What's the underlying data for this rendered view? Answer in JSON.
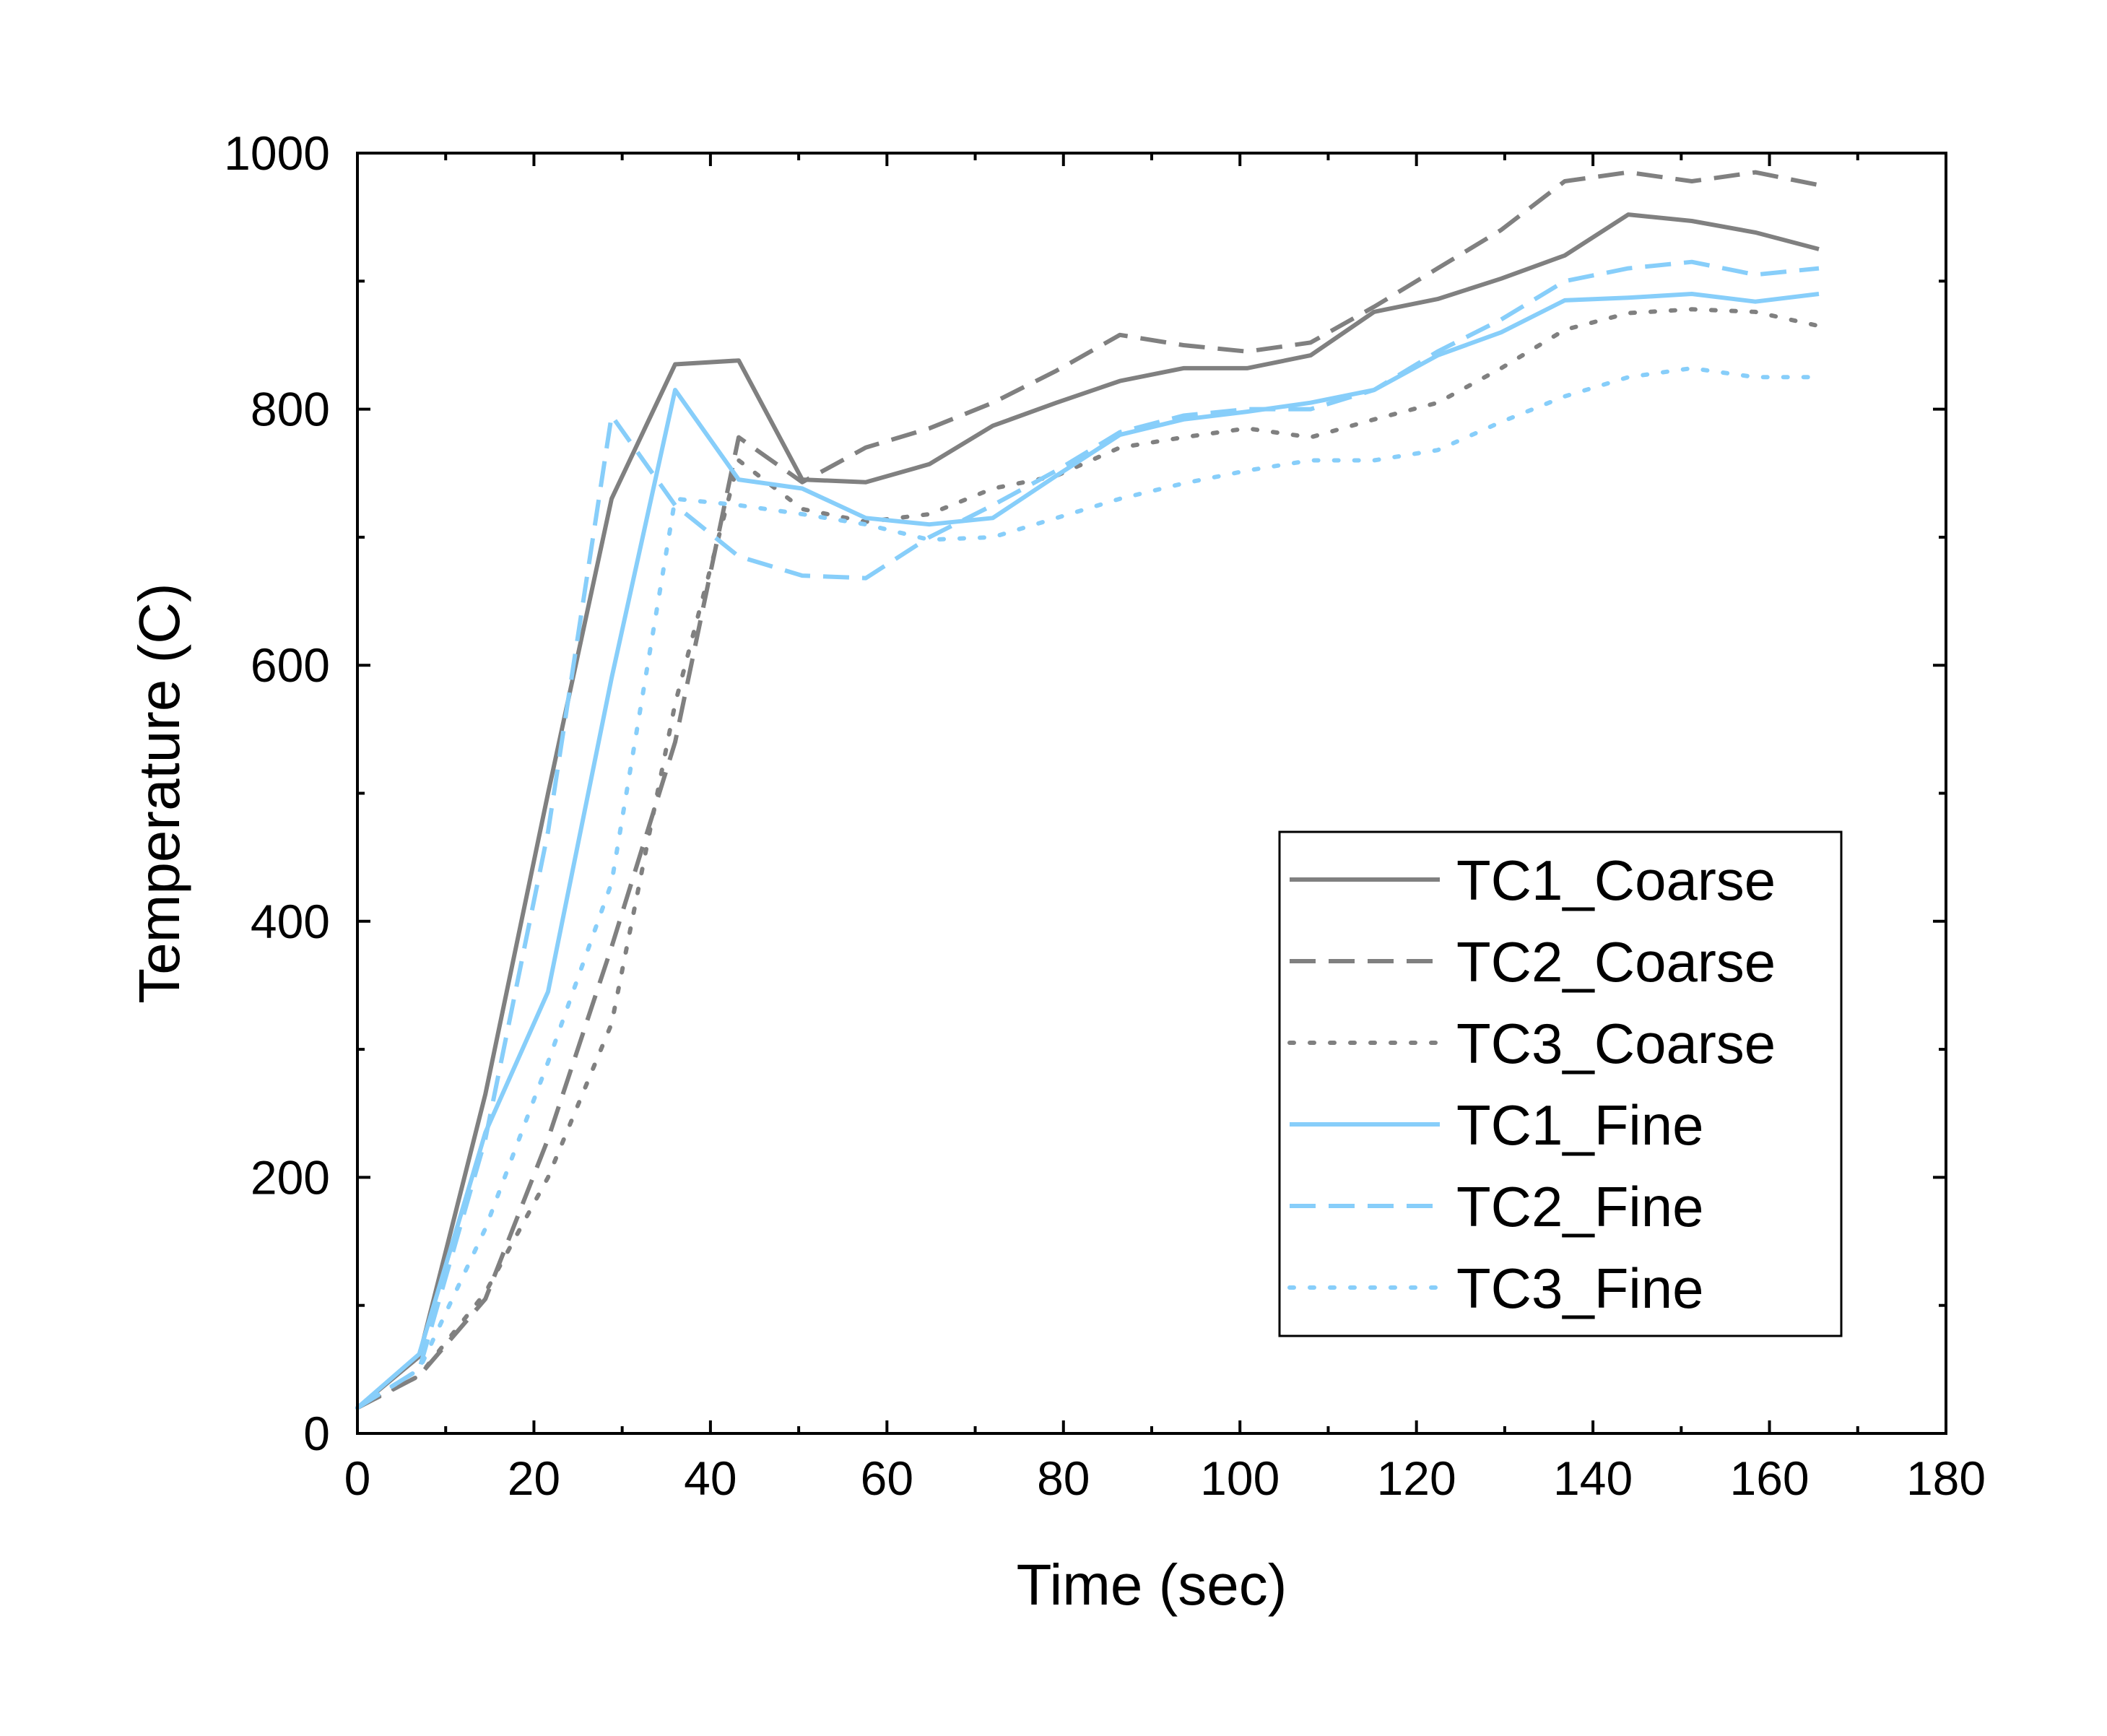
{
  "chart_data": {
    "type": "line",
    "title": "",
    "xlabel": "Time (sec)",
    "ylabel": "Temperature (C)",
    "xlim": [
      0,
      180
    ],
    "ylim": [
      0,
      1000
    ],
    "xticks": [
      0,
      20,
      40,
      60,
      80,
      100,
      120,
      140,
      160,
      180
    ],
    "yticks": [
      0,
      200,
      400,
      600,
      800,
      1000
    ],
    "grid": false,
    "legend_position": "bottom-right",
    "series": [
      {
        "name": "TC1_Coarse",
        "color": "#808080",
        "dash": "solid",
        "x": [
          0,
          7,
          14.5,
          21.6,
          28.8,
          36,
          43.2,
          50.4,
          57.6,
          64.8,
          72,
          79.2,
          86.4,
          93.6,
          100.8,
          108,
          115.2,
          122.4,
          129.6,
          136.8,
          144,
          151.2,
          158.4,
          165.6
        ],
        "y": [
          20,
          60,
          265,
          500,
          730,
          835,
          838,
          745,
          743,
          757,
          787,
          805,
          822,
          832,
          832,
          842,
          876,
          886,
          902,
          920,
          952,
          947,
          938,
          925
        ]
      },
      {
        "name": "TC2_Coarse",
        "color": "#808080",
        "dash": "dashed",
        "x": [
          0,
          7,
          14.5,
          21.6,
          28.8,
          36,
          43.2,
          50.4,
          57.6,
          64.8,
          72,
          79.2,
          86.4,
          93.6,
          100.8,
          108,
          115.2,
          122.4,
          129.6,
          136.8,
          144,
          151.2,
          158.4,
          165.6
        ],
        "y": [
          20,
          45,
          105,
          230,
          380,
          540,
          778,
          743,
          770,
          785,
          805,
          830,
          858,
          850,
          845,
          852,
          880,
          910,
          940,
          978,
          985,
          978,
          985,
          975
        ]
      },
      {
        "name": "TC3_Coarse",
        "color": "#808080",
        "dash": "dotted",
        "x": [
          0,
          7,
          14.5,
          21.6,
          28.8,
          36,
          43.2,
          50.4,
          57.6,
          64.8,
          72,
          79.2,
          86.4,
          93.6,
          100.8,
          108,
          115.2,
          122.4,
          129.6,
          136.8,
          144,
          151.2,
          158.4,
          165.6
        ],
        "y": [
          20,
          45,
          110,
          200,
          320,
          570,
          760,
          722,
          712,
          718,
          738,
          748,
          770,
          778,
          785,
          778,
          792,
          805,
          832,
          862,
          875,
          878,
          876,
          865
        ]
      },
      {
        "name": "TC1_Fine",
        "color": "#87cefa",
        "dash": "solid",
        "x": [
          0,
          7,
          14.5,
          21.6,
          28.8,
          36,
          43.2,
          50.4,
          57.6,
          64.8,
          72,
          79.2,
          86.4,
          93.6,
          100.8,
          108,
          115.2,
          122.4,
          129.6,
          136.8,
          144,
          151.2,
          158.4,
          165.6
        ],
        "y": [
          20,
          62,
          235,
          345,
          590,
          815,
          745,
          738,
          715,
          710,
          715,
          748,
          780,
          792,
          798,
          805,
          815,
          842,
          860,
          885,
          887,
          890,
          884,
          890
        ]
      },
      {
        "name": "TC2_Fine",
        "color": "#87cefa",
        "dash": "dashed",
        "x": [
          0,
          7,
          14.5,
          21.6,
          28.8,
          36,
          43.2,
          50.4,
          57.6,
          64.8,
          72,
          79.2,
          86.4,
          93.6,
          100.8,
          108,
          115.2,
          122.4,
          129.6,
          136.8,
          144,
          151.2,
          158.4,
          165.6
        ],
        "y": [
          20,
          50,
          230,
          470,
          795,
          725,
          685,
          670,
          668,
          700,
          725,
          752,
          782,
          795,
          800,
          800,
          815,
          845,
          870,
          900,
          910,
          915,
          905,
          910
        ]
      },
      {
        "name": "TC3_Fine",
        "color": "#87cefa",
        "dash": "dotted",
        "x": [
          0,
          7,
          14.5,
          21.6,
          28.8,
          36,
          43.2,
          50.4,
          57.6,
          64.8,
          72,
          79.2,
          86.4,
          93.6,
          100.8,
          108,
          115.2,
          122.4,
          129.6,
          136.8,
          144,
          151.2,
          158.4,
          165.6
        ],
        "y": [
          20,
          50,
          160,
          290,
          430,
          730,
          725,
          718,
          710,
          698,
          700,
          715,
          730,
          742,
          752,
          760,
          760,
          768,
          790,
          810,
          825,
          832,
          825,
          825
        ]
      }
    ]
  }
}
